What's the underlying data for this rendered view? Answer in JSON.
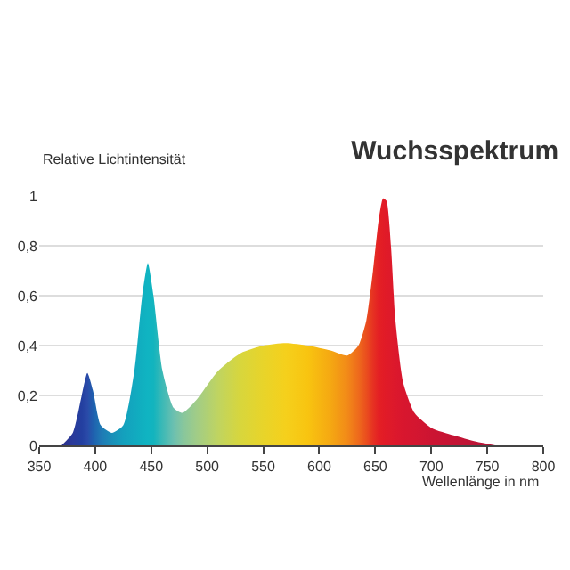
{
  "chart_data": {
    "type": "area",
    "title": "Wuchsspektrum",
    "xlabel": "Wellenlänge in nm",
    "ylabel": "Relative Lichtintensität",
    "x": [
      370,
      380,
      388,
      393,
      398,
      405,
      415,
      425,
      435,
      442,
      447,
      452,
      460,
      470,
      478,
      490,
      510,
      530,
      550,
      570,
      590,
      610,
      625,
      635,
      642,
      648,
      653,
      657,
      660,
      664,
      668,
      675,
      685,
      700,
      720,
      740,
      757
    ],
    "series": [
      {
        "values": [
          0,
          0.05,
          0.2,
          0.29,
          0.22,
          0.08,
          0.05,
          0.08,
          0.3,
          0.6,
          0.73,
          0.6,
          0.3,
          0.15,
          0.13,
          0.18,
          0.3,
          0.37,
          0.4,
          0.41,
          0.4,
          0.38,
          0.36,
          0.4,
          0.5,
          0.7,
          0.9,
          0.99,
          0.98,
          0.8,
          0.5,
          0.25,
          0.13,
          0.07,
          0.04,
          0.015,
          0
        ],
        "colors": [
          "#2b2f8a",
          "#2a3a9a",
          "#233fa0",
          "#2a4aa8",
          "#1f5fae",
          "#1f78b4",
          "#1a8fb8",
          "#14a0bd",
          "#12a9bf",
          "#10b0c0",
          "#10b4c2",
          "#12b4be",
          "#3cb9b6",
          "#6cc0b0",
          "#86c69e",
          "#a0cc88",
          "#c0d460",
          "#d8d63c",
          "#e8d42a",
          "#f5d01c",
          "#f8c410",
          "#f5a812",
          "#f28a18",
          "#ee6a1c",
          "#ea4e1e",
          "#e63222",
          "#e42024",
          "#e21c26",
          "#e01a28",
          "#de1a2a",
          "#dc182c",
          "#d8162e",
          "#d41630",
          "#cc1432",
          "#c41434",
          "#bc1436",
          "#b41438"
        ]
      }
    ],
    "xlim": [
      350,
      800
    ],
    "xticks": [
      350,
      400,
      450,
      500,
      550,
      600,
      650,
      700,
      750,
      800
    ],
    "ylim": [
      0,
      1
    ],
    "yticks": [
      0,
      {
        "value": 0.2,
        "label": "0,2"
      },
      {
        "value": 0.4,
        "label": "0,4"
      },
      {
        "value": 0.6,
        "label": "0,6"
      },
      {
        "value": 0.8,
        "label": "0,8"
      },
      1
    ],
    "grid": "y",
    "legend": false
  }
}
